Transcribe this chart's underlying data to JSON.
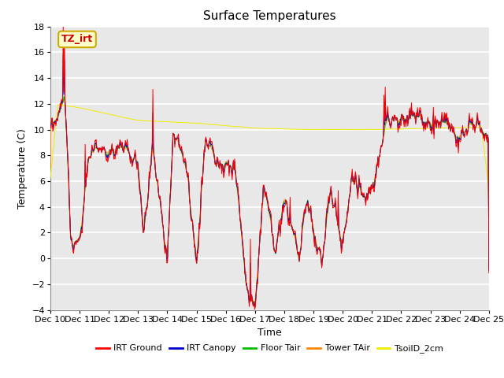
{
  "title": "Surface Temperatures",
  "xlabel": "Time",
  "ylabel": "Temperature (C)",
  "ylim": [
    -4,
    18
  ],
  "yticks": [
    -4,
    -2,
    0,
    2,
    4,
    6,
    8,
    10,
    12,
    14,
    16,
    18
  ],
  "series_colors": {
    "IRT Ground": "#ff0000",
    "IRT Canopy": "#0000cc",
    "Floor Tair": "#00bb00",
    "Tower TAir": "#ff8800",
    "TsoilD_2cm": "#eeee00"
  },
  "series_order": [
    "TsoilD_2cm",
    "Tower TAir",
    "Floor Tair",
    "IRT Canopy",
    "IRT Ground"
  ],
  "legend_order": [
    "IRT Ground",
    "IRT Canopy",
    "Floor Tair",
    "Tower TAir",
    "TsoilD_2cm"
  ],
  "n_days": 15,
  "points_per_day": 48,
  "start_day": 10,
  "annotation_text": "TZ_irt",
  "annotation_color": "#cc0000",
  "annotation_bg": "#ffffcc",
  "annotation_border": "#ccaa00",
  "plot_bg": "#e8e8e8",
  "fig_bg": "#ffffff",
  "grid_color": "#ffffff",
  "title_fontsize": 11,
  "label_fontsize": 9,
  "tick_fontsize": 8
}
